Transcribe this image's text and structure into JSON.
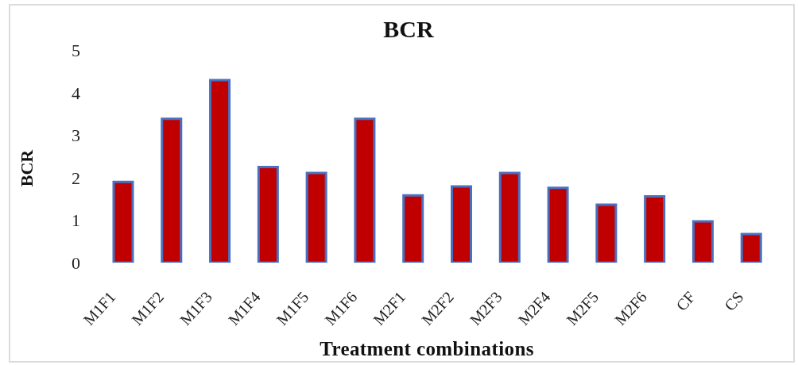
{
  "chart_data": {
    "type": "bar",
    "title": "BCR",
    "xlabel": "Treatment combinations",
    "ylabel": "BCR",
    "categories": [
      "M1F1",
      "M1F2",
      "M1F3",
      "M1F4",
      "M1F5",
      "M1F6",
      "M2F1",
      "M2F2",
      "M2F3",
      "M2F4",
      "M2F5",
      "M2F6",
      "CF",
      "CS"
    ],
    "values": [
      1.9,
      3.38,
      4.29,
      2.25,
      2.11,
      3.38,
      1.58,
      1.79,
      2.11,
      1.76,
      1.36,
      1.56,
      0.97,
      0.67
    ],
    "color": "#c00000",
    "ylim": [
      0,
      5
    ],
    "yticks": [
      0,
      1,
      2,
      3,
      4,
      5
    ],
    "grid": false
  }
}
